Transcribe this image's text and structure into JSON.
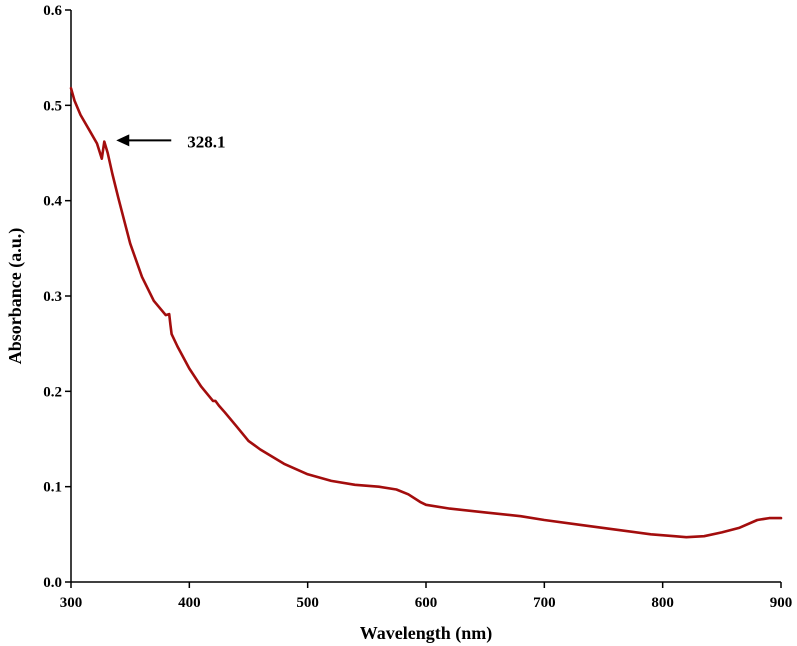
{
  "chart_data": {
    "type": "line",
    "title": "",
    "xlabel": "Wavelength (nm)",
    "ylabel": "Absorbance (a.u.)",
    "xlim": [
      300,
      900
    ],
    "ylim": [
      0.0,
      0.6
    ],
    "x_ticks": [
      "300",
      "400",
      "500",
      "600",
      "700",
      "800",
      "900"
    ],
    "y_ticks": [
      "0.0",
      "0.1",
      "0.2",
      "0.3",
      "0.4",
      "0.5",
      "0.6"
    ],
    "grid": false,
    "legend": "none",
    "annotations": [
      {
        "text": "328.1",
        "x": 328.1,
        "y": 0.457,
        "arrow": true
      }
    ],
    "series": [
      {
        "color": "#a30d0d",
        "x": [
          300,
          303,
          308,
          315,
          322,
          326,
          328.1,
          331,
          335,
          340,
          350,
          360,
          370,
          380,
          383,
          384,
          385,
          390,
          400,
          410,
          420,
          422,
          425,
          430,
          440,
          450,
          460,
          480,
          500,
          520,
          540,
          560,
          575,
          585,
          595,
          600,
          620,
          650,
          680,
          700,
          730,
          760,
          790,
          810,
          820,
          835,
          850,
          865,
          880,
          890,
          900
        ],
        "values": [
          0.518,
          0.505,
          0.49,
          0.475,
          0.46,
          0.444,
          0.462,
          0.45,
          0.428,
          0.403,
          0.355,
          0.32,
          0.295,
          0.28,
          0.281,
          0.27,
          0.26,
          0.247,
          0.224,
          0.205,
          0.19,
          0.19,
          0.185,
          0.178,
          0.163,
          0.148,
          0.139,
          0.124,
          0.113,
          0.106,
          0.102,
          0.1,
          0.097,
          0.092,
          0.084,
          0.081,
          0.077,
          0.073,
          0.069,
          0.065,
          0.06,
          0.055,
          0.05,
          0.048,
          0.047,
          0.048,
          0.052,
          0.057,
          0.065,
          0.067,
          0.067
        ]
      }
    ]
  }
}
